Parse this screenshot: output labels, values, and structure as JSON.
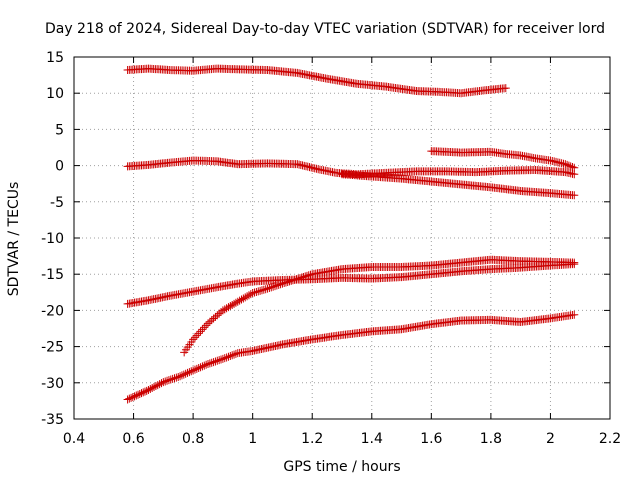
{
  "chart_data": {
    "type": "scatter",
    "title": "Day 218 of 2024, Sidereal Day-to-day VTEC variation (SDTVAR) for receiver lord",
    "xlabel": "GPS time / hours",
    "ylabel": "SDTVAR / TECUs",
    "xlim": [
      0.4,
      2.2
    ],
    "ylim": [
      -35,
      15
    ],
    "xticks": [
      0.4,
      0.6,
      0.8,
      1.0,
      1.2,
      1.4,
      1.6,
      1.8,
      2.0,
      2.2
    ],
    "xtick_labels": [
      "0.4",
      "0.6",
      "0.8",
      "1",
      "1.2",
      "1.4",
      "1.6",
      "1.8",
      "2",
      "2.2"
    ],
    "yticks": [
      15,
      10,
      5,
      0,
      -5,
      -10,
      -15,
      -20,
      -25,
      -30,
      -35
    ],
    "ytick_labels": [
      "15",
      "10",
      "5",
      "0",
      "-5",
      "-10",
      "-15",
      "-20",
      "-25",
      "-30",
      "-35"
    ],
    "grid": true,
    "marker": "+",
    "color": "#cc0000",
    "series": [
      {
        "name": "s1",
        "x": [
          0.58,
          0.65,
          0.72,
          0.8,
          0.88,
          0.95,
          1.05,
          1.15,
          1.25,
          1.35,
          1.45,
          1.55,
          1.62,
          1.7,
          1.78,
          1.85
        ],
        "y": [
          13.2,
          13.4,
          13.2,
          13.1,
          13.4,
          13.3,
          13.2,
          12.8,
          12.0,
          11.3,
          10.9,
          10.3,
          10.2,
          10.0,
          10.4,
          10.7
        ]
      },
      {
        "name": "s2",
        "x": [
          0.58,
          0.65,
          0.72,
          0.8,
          0.88,
          0.95,
          1.05,
          1.15,
          1.22,
          1.28,
          1.35,
          1.45,
          1.55,
          1.65,
          1.75,
          1.85,
          1.95,
          2.05,
          2.08
        ],
        "y": [
          -0.1,
          0.1,
          0.4,
          0.7,
          0.6,
          0.2,
          0.3,
          0.2,
          -0.5,
          -1.0,
          -1.2,
          -1.0,
          -0.8,
          -0.8,
          -0.9,
          -0.7,
          -0.6,
          -0.9,
          -1.2
        ]
      },
      {
        "name": "s3",
        "x": [
          1.3,
          1.4,
          1.5,
          1.6,
          1.7,
          1.8,
          1.9,
          2.0,
          2.08
        ],
        "y": [
          -1.2,
          -1.5,
          -1.8,
          -2.2,
          -2.6,
          -3.0,
          -3.5,
          -3.8,
          -4.1
        ]
      },
      {
        "name": "s4",
        "x": [
          1.6,
          1.7,
          1.8,
          1.85,
          1.9,
          1.95,
          2.0,
          2.05,
          2.08
        ],
        "y": [
          2.0,
          1.8,
          1.9,
          1.6,
          1.4,
          1.0,
          0.7,
          0.2,
          -0.3
        ]
      },
      {
        "name": "s5",
        "x": [
          0.58,
          0.65,
          0.72,
          0.8,
          0.88,
          0.95,
          1.0,
          1.1,
          1.2,
          1.3,
          1.4,
          1.5,
          1.6,
          1.7,
          1.8,
          1.9,
          2.0,
          2.08
        ],
        "y": [
          -19.1,
          -18.6,
          -18.0,
          -17.4,
          -16.8,
          -16.3,
          -16.0,
          -15.8,
          -15.7,
          -15.5,
          -15.6,
          -15.4,
          -15.0,
          -14.6,
          -14.3,
          -14.1,
          -13.8,
          -13.6
        ]
      },
      {
        "name": "s6",
        "x": [
          0.77,
          0.8,
          0.85,
          0.9,
          0.95,
          1.0,
          1.05,
          1.1,
          1.2,
          1.3,
          1.4,
          1.5,
          1.6,
          1.7,
          1.8,
          1.9,
          2.0,
          2.08
        ],
        "y": [
          -25.8,
          -24.0,
          -21.8,
          -20.0,
          -18.8,
          -17.6,
          -17.0,
          -16.3,
          -15.0,
          -14.3,
          -14.0,
          -14.0,
          -13.8,
          -13.4,
          -13.0,
          -13.2,
          -13.3,
          -13.4
        ]
      },
      {
        "name": "s7",
        "x": [
          0.58,
          0.65,
          0.7,
          0.75,
          0.8,
          0.85,
          0.9,
          0.95,
          1.0,
          1.1,
          1.2,
          1.3,
          1.4,
          1.5,
          1.6,
          1.7,
          1.8,
          1.9,
          2.0,
          2.08
        ],
        "y": [
          -32.3,
          -31.0,
          -29.9,
          -29.2,
          -28.3,
          -27.4,
          -26.7,
          -25.9,
          -25.6,
          -24.7,
          -24.0,
          -23.4,
          -22.9,
          -22.6,
          -21.9,
          -21.4,
          -21.3,
          -21.6,
          -21.1,
          -20.6
        ]
      }
    ]
  }
}
